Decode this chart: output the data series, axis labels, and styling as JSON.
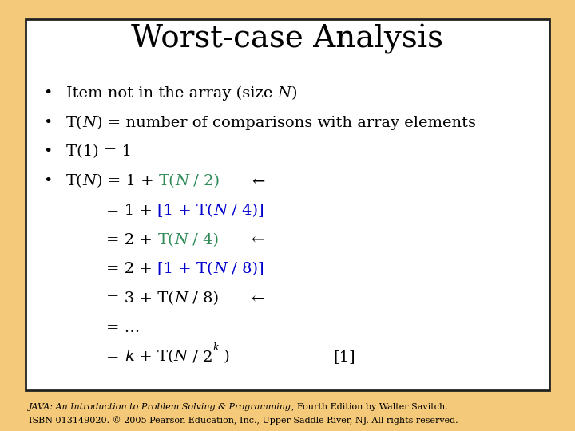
{
  "title": "Worst-case Analysis",
  "bg_outer": "#F5C97A",
  "bg_inner": "#FFFFFF",
  "border_color": "#222222",
  "title_color": "#000000",
  "title_fontsize": 28,
  "footer_text_italic": "JAVA: An Introduction to Problem Solving & Programming",
  "footer_text_normal": ", Fourth Edition by Walter Savitch.",
  "footer_text_line2": "ISBN 013149020. © 2005 Pearson Education, Inc., Upper Saddle River, NJ. All rights reserved.",
  "footer_color": "#000000",
  "footer_fontsize": 8,
  "black": "#000000",
  "teal": "#2E8B57",
  "blue": "#0000CC",
  "content_fontsize": 14
}
